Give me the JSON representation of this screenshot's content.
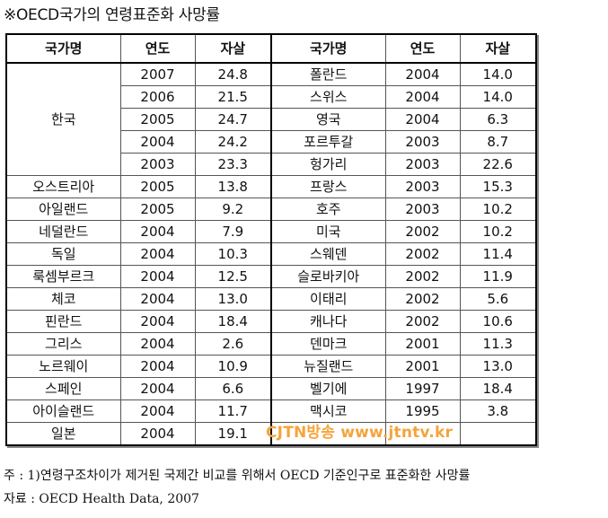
{
  "title": "※OECD국가의 연령표준화 사망률",
  "headers": {
    "country": "국가명",
    "year": "연도",
    "suicide": "자살"
  },
  "left_rows": [
    {
      "country": "한국",
      "year": "2007",
      "value": "24.8",
      "rowspan": 5
    },
    {
      "year": "2006",
      "value": "21.5"
    },
    {
      "year": "2005",
      "value": "24.7"
    },
    {
      "year": "2004",
      "value": "24.2"
    },
    {
      "year": "2003",
      "value": "23.3"
    },
    {
      "country": "오스트리아",
      "year": "2005",
      "value": "13.8"
    },
    {
      "country": "아일랜드",
      "year": "2005",
      "value": "9.2"
    },
    {
      "country": "네덜란드",
      "year": "2004",
      "value": "7.9"
    },
    {
      "country": "독일",
      "year": "2004",
      "value": "10.3"
    },
    {
      "country": "룩셈부르크",
      "year": "2004",
      "value": "12.5"
    },
    {
      "country": "체코",
      "year": "2004",
      "value": "13.0"
    },
    {
      "country": "핀란드",
      "year": "2004",
      "value": "18.4"
    },
    {
      "country": "그리스",
      "year": "2004",
      "value": "2.6"
    },
    {
      "country": "노르웨이",
      "year": "2004",
      "value": "10.9"
    },
    {
      "country": "스페인",
      "year": "2004",
      "value": "6.6"
    },
    {
      "country": "아이슬랜드",
      "year": "2004",
      "value": "11.7"
    },
    {
      "country": "일본",
      "year": "2004",
      "value": "19.1"
    }
  ],
  "right_rows": [
    {
      "country": "폴란드",
      "year": "2004",
      "value": "14.0"
    },
    {
      "country": "스위스",
      "year": "2004",
      "value": "14.0"
    },
    {
      "country": "영국",
      "year": "2004",
      "value": "6.3"
    },
    {
      "country": "포르투갈",
      "year": "2003",
      "value": "8.7"
    },
    {
      "country": "헝가리",
      "year": "2003",
      "value": "22.6"
    },
    {
      "country": "프랑스",
      "year": "2003",
      "value": "15.3"
    },
    {
      "country": "호주",
      "year": "2003",
      "value": "10.2"
    },
    {
      "country": "미국",
      "year": "2002",
      "value": "10.2"
    },
    {
      "country": "스웨덴",
      "year": "2002",
      "value": "11.4"
    },
    {
      "country": "슬로바키아",
      "year": "2002",
      "value": "11.9"
    },
    {
      "country": "이태리",
      "year": "2002",
      "value": "5.6"
    },
    {
      "country": "캐나다",
      "year": "2002",
      "value": "10.6"
    },
    {
      "country": "덴마크",
      "year": "2001",
      "value": "11.3"
    },
    {
      "country": "뉴질랜드",
      "year": "2001",
      "value": "13.0"
    },
    {
      "country": "벨기에",
      "year": "1997",
      "value": "18.4"
    },
    {
      "country": "맥시코",
      "year": "1995",
      "value": "3.8"
    },
    {
      "country": "",
      "year": "",
      "value": ""
    }
  ],
  "watermark": "CJTN방송 www.jtntv.kr",
  "notes": {
    "line1": "주 : 1)연령구조차이가 제거된 국제간 비교를 위해서 OECD 기준인구로 표준화한 사망률",
    "line2": "자료 : OECD Health Data, 2007"
  },
  "colors": {
    "watermark": "#f5a43b",
    "border": "#000000"
  }
}
